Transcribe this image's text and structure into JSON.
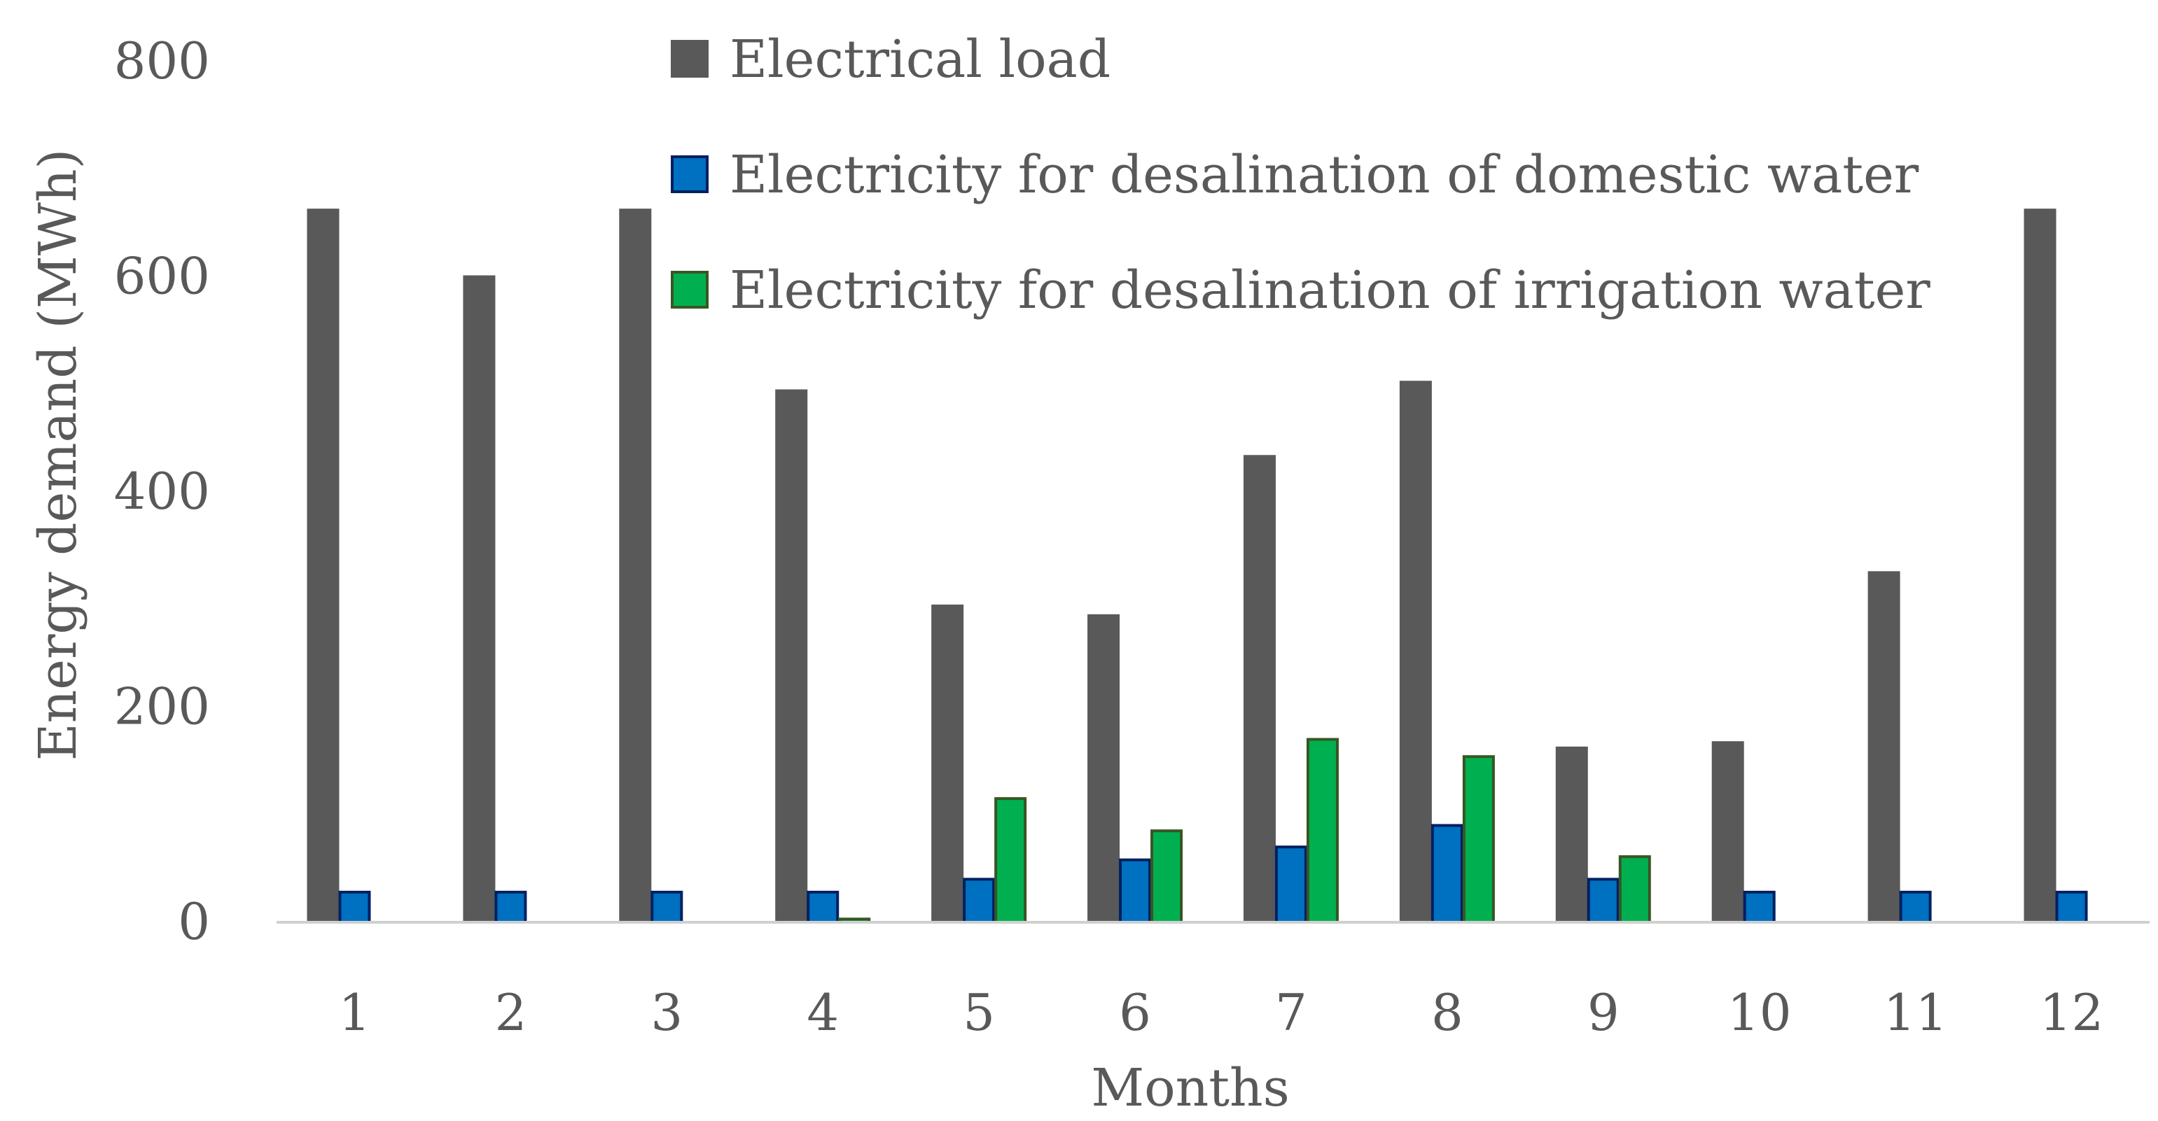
{
  "chart_data": {
    "type": "bar",
    "title": "",
    "xlabel": "Months",
    "ylabel": "Energy demand (MWh)",
    "ylim": [
      0,
      800
    ],
    "yticks": [
      0,
      200,
      400,
      600,
      800
    ],
    "grid": false,
    "legend_position": "top-right",
    "categories": [
      "1",
      "2",
      "3",
      "4",
      "5",
      "6",
      "7",
      "8",
      "9",
      "10",
      "11",
      "12"
    ],
    "series": [
      {
        "name": "Electrical load",
        "color": "#595959",
        "stroke": "#595959",
        "values": [
          662,
          600,
          662,
          494,
          294,
          285,
          433,
          502,
          162,
          167,
          325,
          662
        ]
      },
      {
        "name": "Electricity for desalination of domestic water",
        "color": "#0070C0",
        "stroke": "#002060",
        "values": [
          28,
          28,
          28,
          28,
          40,
          58,
          70,
          90,
          40,
          28,
          28,
          28
        ]
      },
      {
        "name": "Electricity for desalination of irrigation water",
        "color": "#00B050",
        "stroke": "#375623",
        "values": [
          0,
          0,
          0,
          3,
          115,
          85,
          170,
          154,
          61,
          0,
          0,
          0
        ]
      }
    ]
  }
}
